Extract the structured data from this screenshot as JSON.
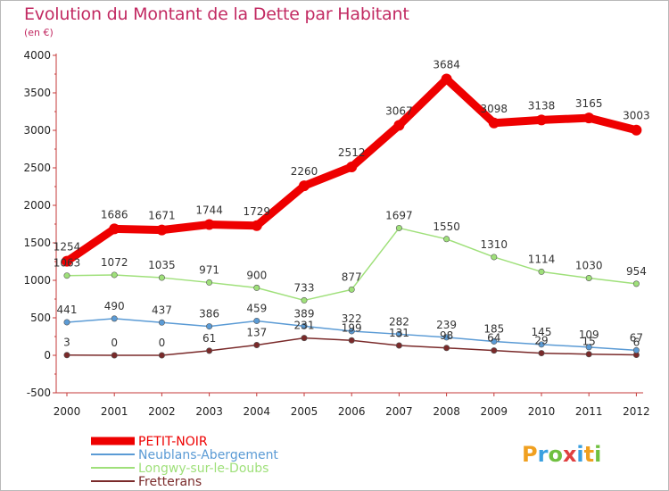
{
  "title": "Evolution du Montant de la Dette par Habitant",
  "subtitle": "(en €)",
  "logo_text": "Proxiti",
  "chart_data": {
    "type": "line",
    "x": [
      "2000",
      "2001",
      "2002",
      "2003",
      "2004",
      "2005",
      "2006",
      "2007",
      "2008",
      "2009",
      "2010",
      "2011",
      "2012"
    ],
    "ylim": [
      -500,
      4000
    ],
    "yticks": [
      -500,
      0,
      500,
      1000,
      1500,
      2000,
      2500,
      3000,
      3500,
      4000
    ],
    "grid": false,
    "legend_position": "bottom-left",
    "series": [
      {
        "name": "PETIT-NOIR",
        "color": "#ee0000",
        "values": [
          1254,
          1686,
          1671,
          1744,
          1729,
          2260,
          2512,
          3067,
          3684,
          3098,
          3138,
          3165,
          3003
        ]
      },
      {
        "name": "Neublans-Abergement",
        "color": "#5b9bd5",
        "values": [
          441,
          490,
          437,
          386,
          459,
          389,
          322,
          282,
          239,
          185,
          145,
          109,
          67
        ]
      },
      {
        "name": "Longwy-sur-le-Doubs",
        "color": "#9fe07a",
        "values": [
          1063,
          1072,
          1035,
          971,
          900,
          733,
          877,
          1697,
          1550,
          1310,
          1114,
          1030,
          954
        ]
      },
      {
        "name": "Fretterans",
        "color": "#7a2a2a",
        "values": [
          3,
          0,
          0,
          61,
          137,
          231,
          199,
          131,
          98,
          64,
          29,
          15,
          6
        ]
      }
    ]
  }
}
